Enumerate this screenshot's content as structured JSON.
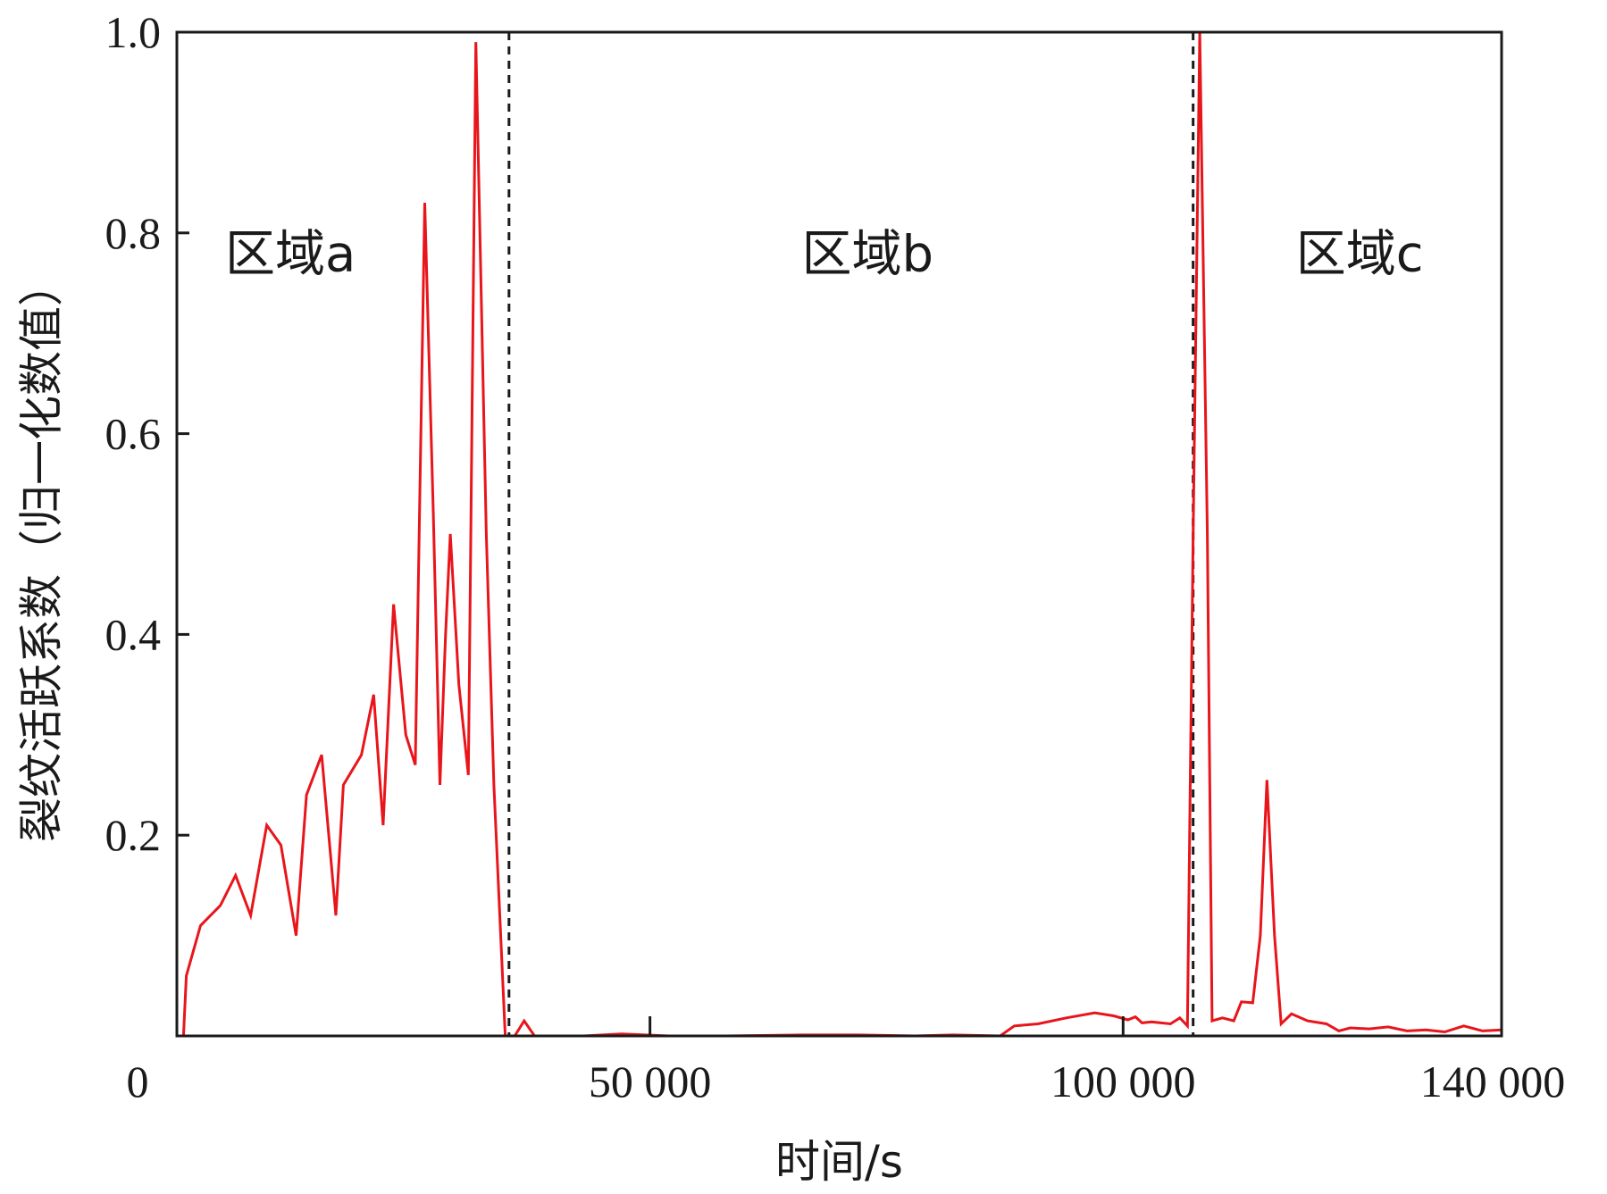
{
  "chart_data": {
    "type": "line",
    "title": "",
    "xlabel": "时间/s",
    "ylabel": "裂纹活跃系数（归一化数值）",
    "xlim": [
      0,
      140000
    ],
    "ylim": [
      0,
      1.0
    ],
    "x_ticks": [
      {
        "value": 0,
        "label": "0"
      },
      {
        "value": 50000,
        "label": "50 000"
      },
      {
        "value": 100000,
        "label": "100 000"
      },
      {
        "value": 140000,
        "label": "140 000"
      }
    ],
    "y_ticks": [
      {
        "value": 0.2,
        "label": "0.2"
      },
      {
        "value": 0.4,
        "label": "0.4"
      },
      {
        "value": 0.6,
        "label": "0.6"
      },
      {
        "value": 0.8,
        "label": "0.8"
      },
      {
        "value": 1.0,
        "label": "1.0"
      }
    ],
    "grid": false,
    "legend": "none",
    "series": [
      {
        "color": "#e8151b",
        "points": [
          [
            700,
            0
          ],
          [
            1000,
            0.06
          ],
          [
            2500,
            0.11
          ],
          [
            4600,
            0.13
          ],
          [
            6200,
            0.16
          ],
          [
            7800,
            0.12
          ],
          [
            9500,
            0.21
          ],
          [
            11000,
            0.19
          ],
          [
            12600,
            0.1
          ],
          [
            13700,
            0.24
          ],
          [
            15300,
            0.28
          ],
          [
            16800,
            0.12
          ],
          [
            17600,
            0.25
          ],
          [
            19500,
            0.28
          ],
          [
            20800,
            0.34
          ],
          [
            21800,
            0.21
          ],
          [
            22900,
            0.43
          ],
          [
            24200,
            0.3
          ],
          [
            25200,
            0.27
          ],
          [
            26200,
            0.83
          ],
          [
            27100,
            0.52
          ],
          [
            27800,
            0.25
          ],
          [
            28400,
            0.4
          ],
          [
            28900,
            0.5
          ],
          [
            29800,
            0.35
          ],
          [
            30800,
            0.26
          ],
          [
            31600,
            0.99
          ],
          [
            32700,
            0.5
          ],
          [
            33500,
            0.25
          ],
          [
            34700,
            0
          ],
          [
            35700,
            0
          ],
          [
            36700,
            0.015
          ],
          [
            37800,
            0
          ],
          [
            39000,
            0
          ],
          [
            43000,
            0
          ],
          [
            47000,
            0.002
          ],
          [
            52000,
            0
          ],
          [
            58000,
            0
          ],
          [
            66000,
            0.001
          ],
          [
            72000,
            0.001
          ],
          [
            78000,
            0
          ],
          [
            82000,
            0.001
          ],
          [
            87000,
            0
          ],
          [
            88500,
            0.01
          ],
          [
            91000,
            0.012
          ],
          [
            94000,
            0.018
          ],
          [
            97000,
            0.023
          ],
          [
            99000,
            0.02
          ],
          [
            100500,
            0.016
          ],
          [
            101300,
            0.019
          ],
          [
            102000,
            0.013
          ],
          [
            103000,
            0.014
          ],
          [
            104000,
            0.013
          ],
          [
            105000,
            0.012
          ],
          [
            106000,
            0.018
          ],
          [
            106800,
            0.01
          ],
          [
            107400,
            0.5
          ],
          [
            108100,
            1.0
          ],
          [
            108900,
            0.5
          ],
          [
            109400,
            0.015
          ],
          [
            110500,
            0.018
          ],
          [
            111700,
            0.015
          ],
          [
            112500,
            0.034
          ],
          [
            113700,
            0.033
          ],
          [
            114500,
            0.1
          ],
          [
            115200,
            0.255
          ],
          [
            116000,
            0.1
          ],
          [
            116700,
            0.012
          ],
          [
            117800,
            0.022
          ],
          [
            119500,
            0.015
          ],
          [
            121500,
            0.012
          ],
          [
            122800,
            0.005
          ],
          [
            124000,
            0.008
          ],
          [
            126000,
            0.007
          ],
          [
            128000,
            0.009
          ],
          [
            130000,
            0.005
          ],
          [
            132000,
            0.006
          ],
          [
            134000,
            0.004
          ],
          [
            136000,
            0.01
          ],
          [
            138000,
            0.005
          ],
          [
            140000,
            0.006
          ]
        ]
      }
    ],
    "boundaries": [
      35100,
      107400
    ],
    "annotations": [
      {
        "text": "区域a",
        "x": 12000,
        "y": 0.78
      },
      {
        "text": "区域b",
        "x": 73000,
        "y": 0.78
      },
      {
        "text": "区域c",
        "x": 125000,
        "y": 0.78
      }
    ]
  }
}
